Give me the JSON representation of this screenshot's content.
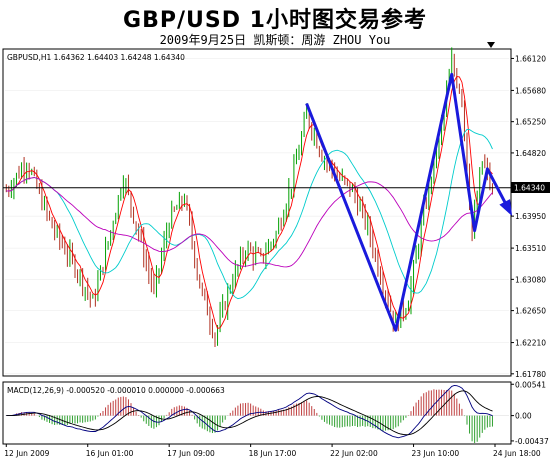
{
  "chart_data": [
    {
      "type": "line",
      "panel": "price",
      "title": "GBP/USD 1小时图交易参考",
      "subtitle": "2009年9月25日    凯斯顿：周游 ZHOU You",
      "header": "GBPUSD,H1  1.64362 1.64403 1.64248 1.64340",
      "symbol": "GBPUSD",
      "timeframe": "H1",
      "ohlc": {
        "open": 1.64362,
        "high": 1.64403,
        "low": 1.64248,
        "close": 1.6434
      },
      "current_price": 1.6434,
      "current_price_label": "1.64340",
      "ylim": [
        1.6175,
        1.6625
      ],
      "y_ticks": [
        "1.66120",
        "1.65680",
        "1.65250",
        "1.64820",
        "1.63950",
        "1.63510",
        "1.63080",
        "1.62650",
        "1.62210",
        "1.61780"
      ],
      "x_ticks": [
        "12 Jun 2009",
        "16 Jun 01:00",
        "17 Jun 09:00",
        "18 Jun 17:00",
        "22 Jun 02:00",
        "23 Jun 10:00",
        "24 Jun 18:00"
      ],
      "candle_count": 192,
      "price_path": [
        {
          "i": 0,
          "v": 1.643
        },
        {
          "i": 8,
          "v": 1.647
        },
        {
          "i": 18,
          "v": 1.638
        },
        {
          "i": 28,
          "v": 1.632
        },
        {
          "i": 34,
          "v": 1.6275
        },
        {
          "i": 40,
          "v": 1.636
        },
        {
          "i": 46,
          "v": 1.645
        },
        {
          "i": 52,
          "v": 1.637
        },
        {
          "i": 58,
          "v": 1.629
        },
        {
          "i": 64,
          "v": 1.639
        },
        {
          "i": 70,
          "v": 1.642
        },
        {
          "i": 76,
          "v": 1.63
        },
        {
          "i": 82,
          "v": 1.623
        },
        {
          "i": 88,
          "v": 1.63
        },
        {
          "i": 94,
          "v": 1.635
        },
        {
          "i": 100,
          "v": 1.6335
        },
        {
          "i": 106,
          "v": 1.637
        },
        {
          "i": 112,
          "v": 1.644
        },
        {
          "i": 118,
          "v": 1.6535
        },
        {
          "i": 124,
          "v": 1.648
        },
        {
          "i": 130,
          "v": 1.645
        },
        {
          "i": 136,
          "v": 1.643
        },
        {
          "i": 142,
          "v": 1.638
        },
        {
          "i": 148,
          "v": 1.63
        },
        {
          "i": 153,
          "v": 1.6245
        },
        {
          "i": 158,
          "v": 1.628
        },
        {
          "i": 164,
          "v": 1.64
        },
        {
          "i": 170,
          "v": 1.65
        },
        {
          "i": 175,
          "v": 1.6605
        },
        {
          "i": 179,
          "v": 1.656
        },
        {
          "i": 183,
          "v": 1.637
        },
        {
          "i": 187,
          "v": 1.647
        },
        {
          "i": 191,
          "v": 1.6434
        }
      ],
      "moving_averages": [
        {
          "name": "fast",
          "color": "#ff0000",
          "period": 5
        },
        {
          "name": "medium",
          "color": "#00cccc",
          "period": 18
        },
        {
          "name": "slow",
          "color": "#bb00bb",
          "period": 40
        }
      ],
      "annotation": {
        "color": "#1a1adc",
        "zigzag": [
          {
            "i": 118,
            "v": 1.655
          },
          {
            "i": 153,
            "v": 1.6238
          },
          {
            "i": 175,
            "v": 1.659
          },
          {
            "i": 184,
            "v": 1.6375
          },
          {
            "i": 189,
            "v": 1.646
          },
          {
            "i": 198,
            "v": 1.64
          }
        ]
      },
      "colors": {
        "bull": "#00a000",
        "bear": "#b03020",
        "current_line": "#000000"
      }
    },
    {
      "type": "bar",
      "panel": "indicator",
      "header": "MACD(12,26,9) -0.000520 -0.000010 0.000000 -0.000663",
      "indicator": "MACD",
      "params": [
        12,
        26,
        9
      ],
      "values": [
        -0.00052,
        -1e-05,
        0.0,
        -0.000663
      ],
      "ylim": [
        -0.0049,
        0.0058
      ],
      "y_ticks": [
        "0.00541",
        "0.00",
        "-0.00437"
      ],
      "histogram_colors": {
        "positive": "#c04040",
        "negative": "#30a030"
      },
      "line_colors": {
        "macd": "#000080",
        "signal": "#000000"
      }
    }
  ]
}
